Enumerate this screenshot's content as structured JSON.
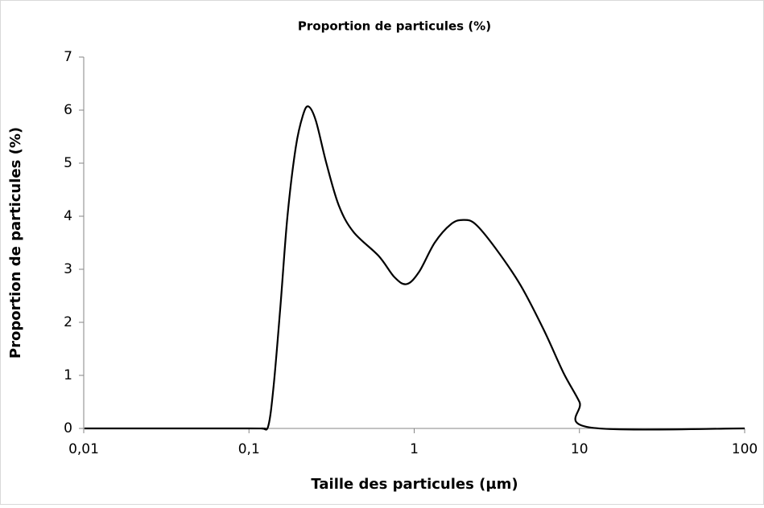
{
  "chart_data": {
    "type": "line",
    "title": "Proportion de particules (%)",
    "xlabel": "Taille des particules (µm)",
    "ylabel": "Proportion de particules (%)",
    "xscale": "log",
    "xlim": [
      0.01,
      100
    ],
    "xticks": [
      {
        "value": 0.01,
        "label": "0,01"
      },
      {
        "value": 0.1,
        "label": "0,1"
      },
      1,
      10,
      100
    ],
    "ylim": [
      0,
      7
    ],
    "yticks": [
      0,
      1,
      2,
      3,
      4,
      5,
      6,
      7
    ],
    "grid": false,
    "series": [
      {
        "name": "Proportion de particules (%)",
        "color": "#000000",
        "x": [
          0.0101,
          0.1,
          0.12,
          0.131,
          0.141,
          0.155,
          0.171,
          0.192,
          0.212,
          0.229,
          0.254,
          0.294,
          0.35,
          0.43,
          0.61,
          0.76,
          0.9,
          1.07,
          1.33,
          1.67,
          1.98,
          2.35,
          3.1,
          4.4,
          6.1,
          8.0,
          10,
          11.5,
          100
        ],
        "values": [
          0,
          0,
          0,
          0.05,
          0.8,
          2.3,
          4.0,
          5.3,
          5.9,
          6.07,
          5.8,
          5.0,
          4.2,
          3.7,
          3.25,
          2.85,
          2.72,
          2.95,
          3.5,
          3.85,
          3.93,
          3.85,
          3.4,
          2.7,
          1.85,
          1.05,
          0.5,
          0.02,
          0
        ]
      }
    ]
  }
}
